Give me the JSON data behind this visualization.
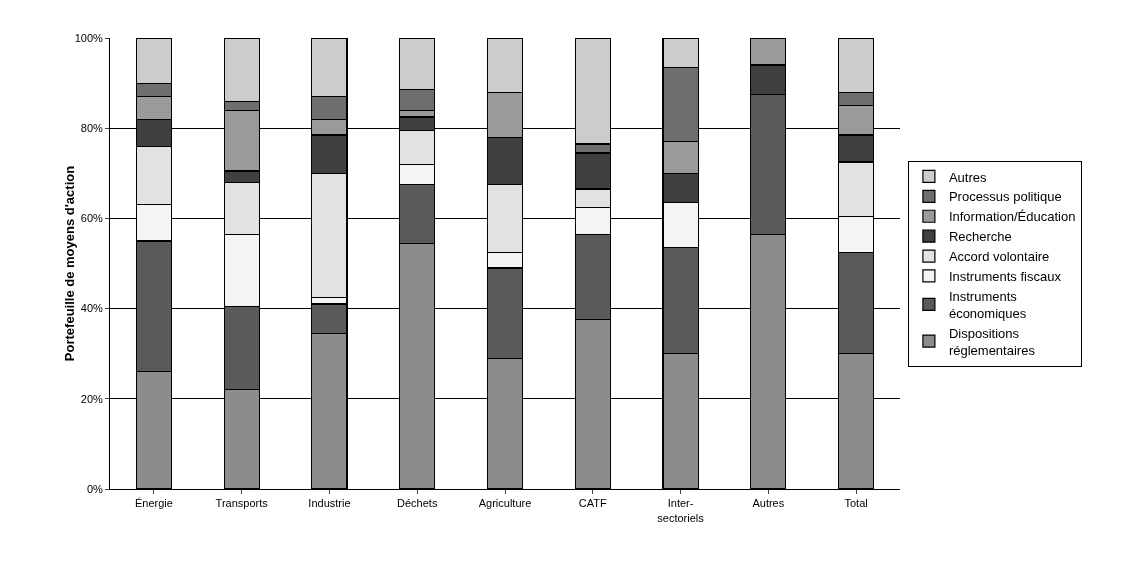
{
  "chart_data": {
    "type": "bar",
    "stacked": true,
    "ylabel": "Portefeuille de moyens d'action",
    "categories": [
      "Énergie",
      "Transports",
      "Industrie",
      "Déchets",
      "Agriculture",
      "CATF",
      "Inter-\nsectoriels",
      "Autres",
      "Total"
    ],
    "series": [
      {
        "name": "Dispositions\nréglementaires",
        "color": "#8c8c8c",
        "values": [
          26,
          22,
          34.5,
          54.5,
          29,
          37.5,
          30,
          56.5,
          30
        ]
      },
      {
        "name": "Instruments\néconomiques",
        "color": "#5a5a5a",
        "values": [
          29,
          18.5,
          6.5,
          13,
          20,
          19,
          23.5,
          31,
          22.5
        ]
      },
      {
        "name": "Instruments fiscaux",
        "color": "#f4f4f4",
        "values": [
          8,
          16,
          1.5,
          4.5,
          3.5,
          6,
          10,
          0,
          8
        ]
      },
      {
        "name": "Accord volontaire",
        "color": "#e2e2e2",
        "values": [
          13,
          11.5,
          27.5,
          7.5,
          15,
          4,
          0,
          0,
          12
        ]
      },
      {
        "name": "Recherche",
        "color": "#404040",
        "values": [
          6,
          2.5,
          8.5,
          3,
          10.5,
          8,
          6.5,
          6.5,
          6
        ]
      },
      {
        "name": "Information/Éducation",
        "color": "#9a9a9a",
        "values": [
          5,
          13.5,
          3.5,
          1.5,
          10,
          0,
          7,
          6,
          6.5
        ]
      },
      {
        "name": "Processus politique",
        "color": "#6e6e6e",
        "values": [
          3,
          2,
          5,
          4.5,
          0,
          2,
          16.5,
          0,
          3
        ]
      },
      {
        "name": "Autres",
        "color": "#cccccc",
        "values": [
          10,
          14,
          13,
          11.5,
          12,
          23.5,
          6.5,
          0,
          12
        ]
      }
    ],
    "ylim": [
      0,
      100
    ],
    "yticks": [
      {
        "value": 0,
        "label": "0%"
      },
      {
        "value": 20,
        "label": "20%"
      },
      {
        "value": 40,
        "label": "40%"
      },
      {
        "value": 60,
        "label": "60%"
      },
      {
        "value": 80,
        "label": "80%"
      },
      {
        "value": 100,
        "label": "100%"
      }
    ],
    "grid": "y",
    "legend": "right"
  }
}
